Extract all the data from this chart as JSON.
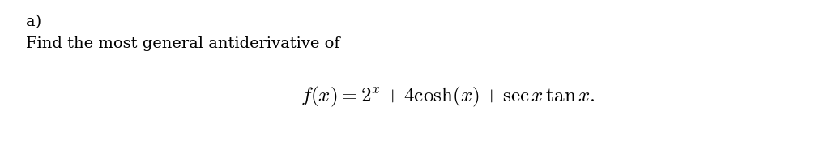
{
  "label_a": "a)",
  "line1": "Find the most general antiderivative of",
  "formula": "$f(x) = 2^{x} + 4\\cosh(x) + \\sec x\\,\\tan x.$",
  "bg_color": "#ffffff",
  "text_color": "#000000",
  "label_fontsize": 14,
  "text_fontsize": 14,
  "formula_fontsize": 18,
  "figwidth": 10.06,
  "figheight": 2.06,
  "dpi": 100
}
